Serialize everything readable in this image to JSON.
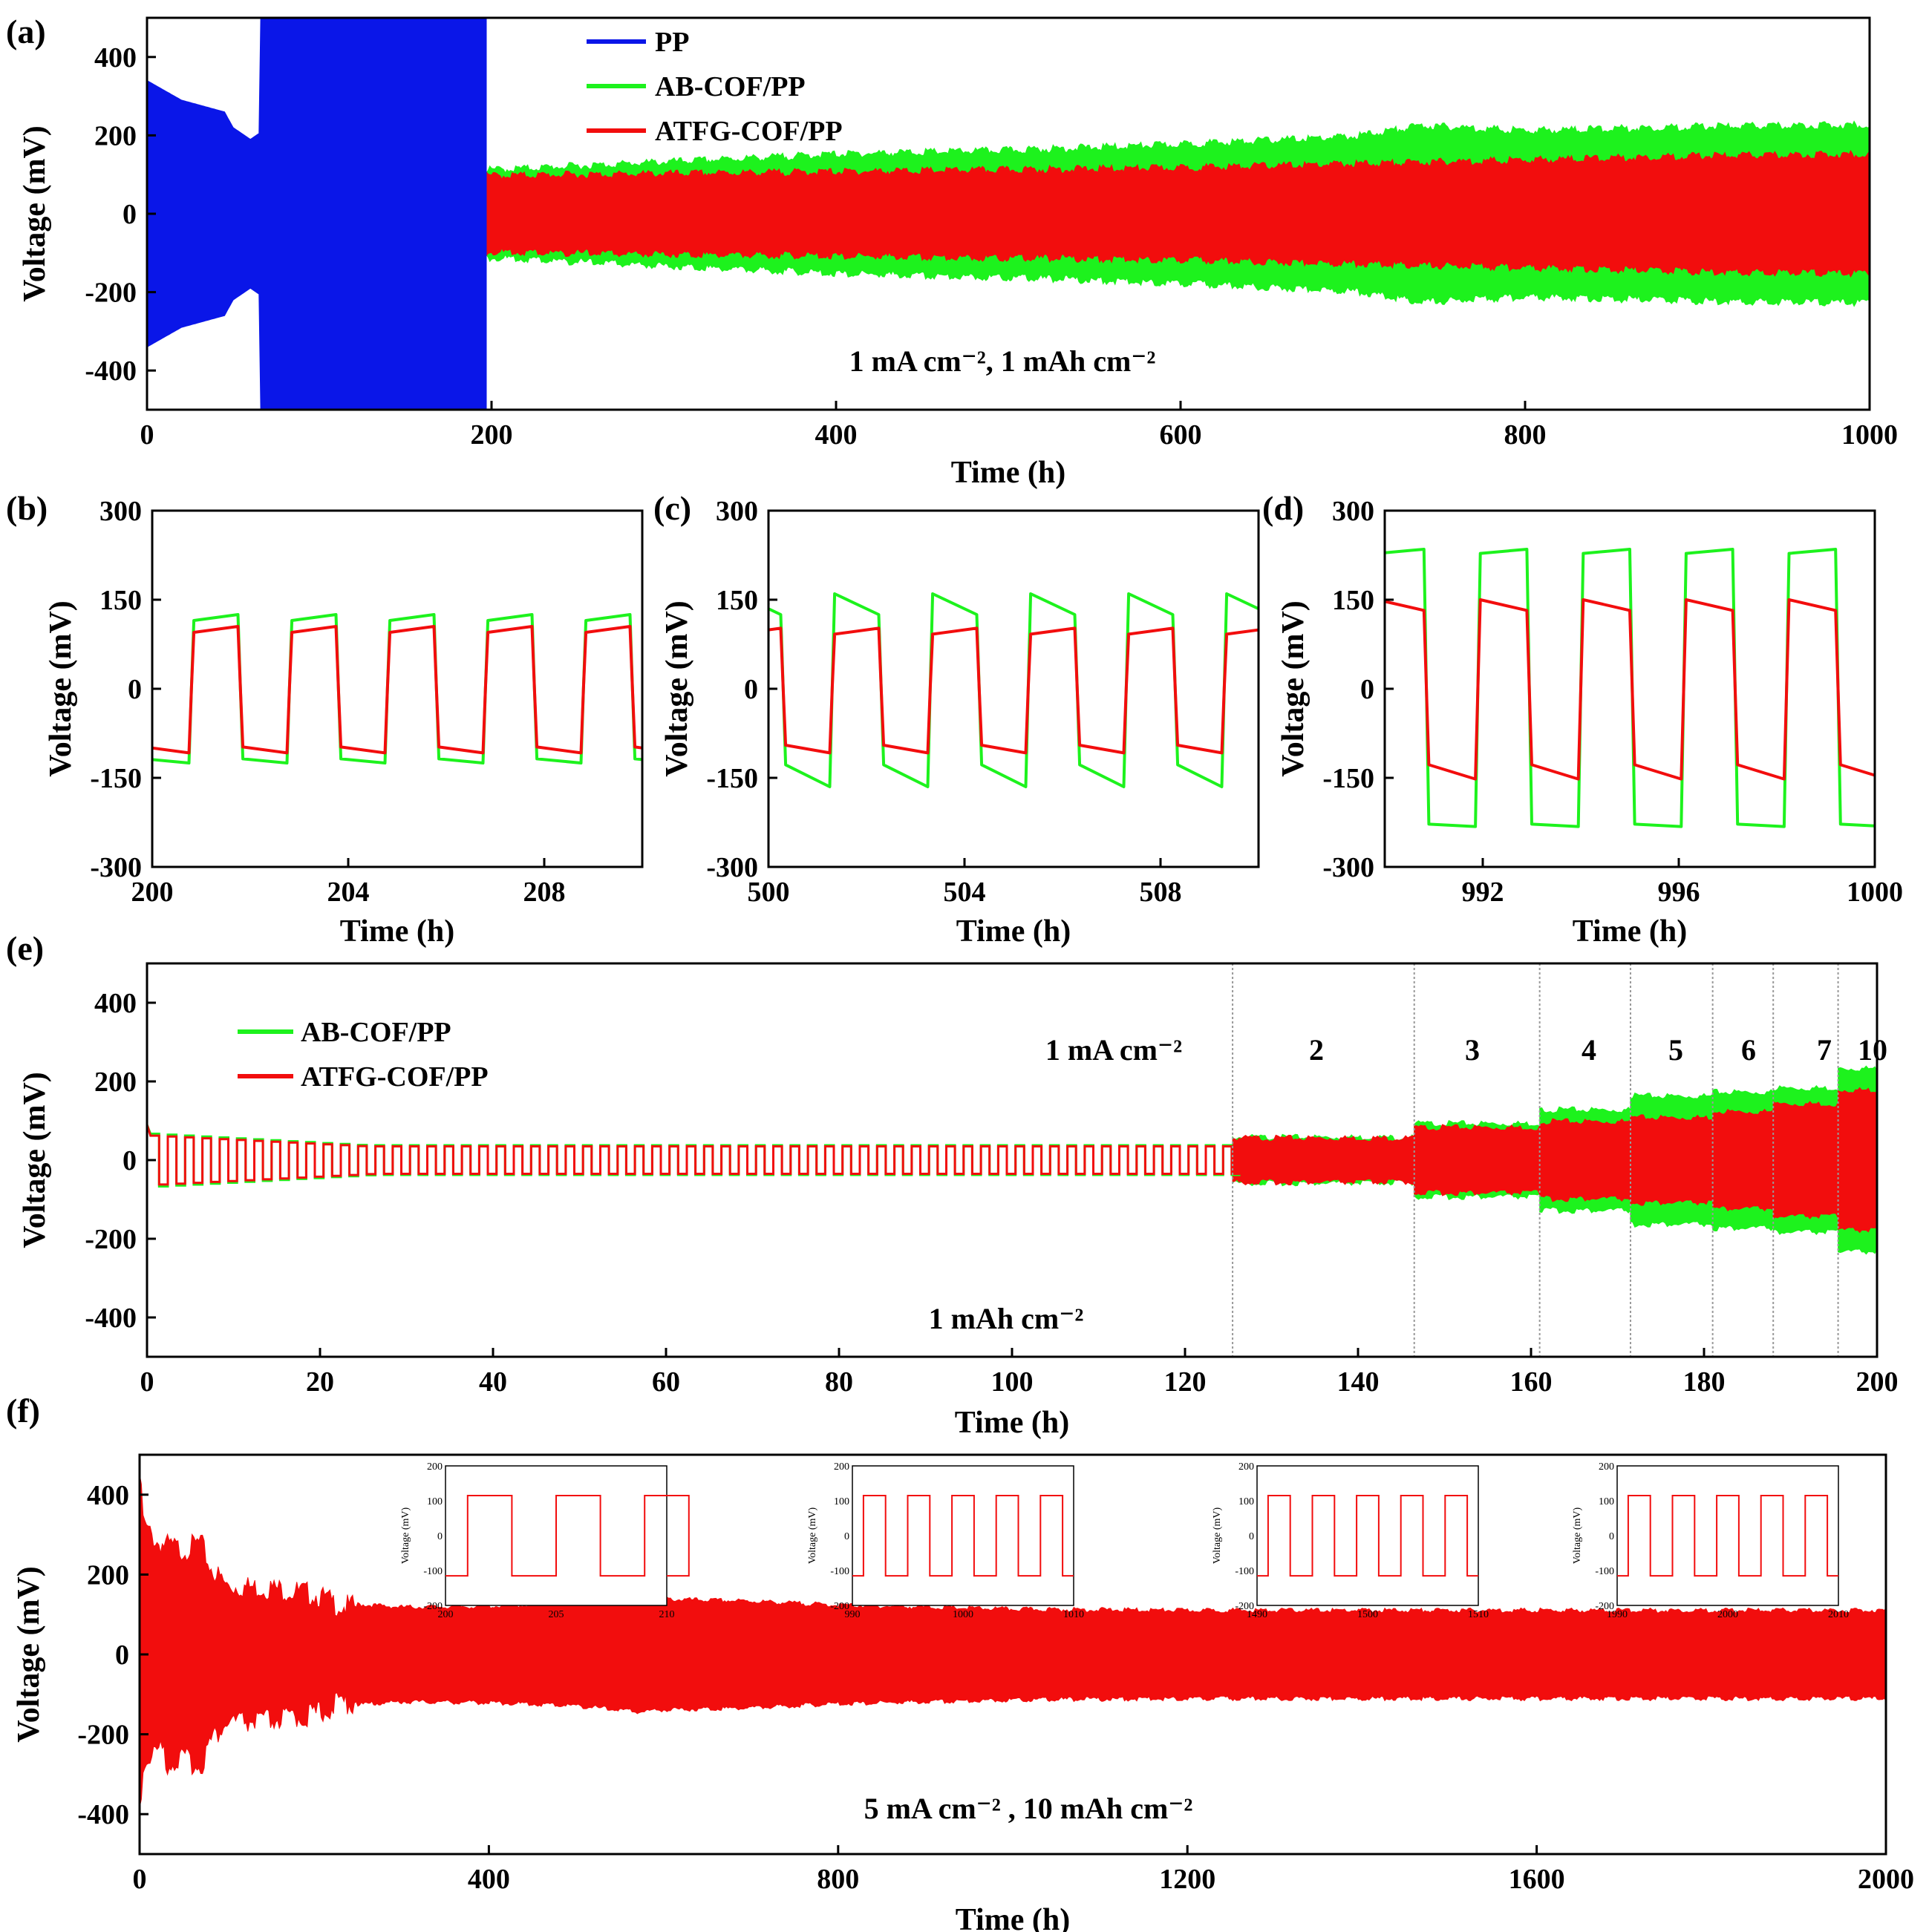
{
  "chart_data": [
    {
      "panel": "(a)",
      "type": "line",
      "xlabel": "Time (h)",
      "ylabel": "Voltage (mV)",
      "xlim": [
        0,
        1000
      ],
      "ylim": [
        -500,
        500
      ],
      "xticks": [
        0,
        200,
        400,
        600,
        800,
        1000
      ],
      "yticks": [
        -400,
        -200,
        0,
        200,
        400
      ],
      "annotation": "1 mA cm⁻², 1 mAh cm⁻²",
      "legend": [
        "PP",
        "AB-COF/PP",
        "ATFG-COF/PP"
      ],
      "series": [
        {
          "name": "PP",
          "color": "#0a16e8",
          "envelope": [
            [
              0,
              340
            ],
            [
              20,
              290
            ],
            [
              45,
              260
            ],
            [
              50,
              220
            ],
            [
              60,
              190
            ],
            [
              65,
              205
            ],
            [
              66,
              500
            ],
            [
              197,
              500
            ],
            [
              198,
              0
            ]
          ]
        },
        {
          "name": "AB-COF/PP",
          "color": "#1df21d",
          "envelope": [
            [
              0,
              240
            ],
            [
              5,
              185
            ],
            [
              20,
              140
            ],
            [
              50,
              125
            ],
            [
              100,
              118
            ],
            [
              200,
              115
            ],
            [
              300,
              135
            ],
            [
              400,
              155
            ],
            [
              500,
              165
            ],
            [
              600,
              180
            ],
            [
              700,
              200
            ],
            [
              740,
              228
            ],
            [
              800,
              215
            ],
            [
              900,
              225
            ],
            [
              1000,
              230
            ]
          ]
        },
        {
          "name": "ATFG-COF/PP",
          "color": "#f20d0d",
          "envelope": [
            [
              0,
              150
            ],
            [
              20,
              120
            ],
            [
              100,
              110
            ],
            [
              200,
              100
            ],
            [
              300,
              105
            ],
            [
              400,
              110
            ],
            [
              500,
              115
            ],
            [
              600,
              120
            ],
            [
              700,
              130
            ],
            [
              800,
              140
            ],
            [
              900,
              150
            ],
            [
              1000,
              155
            ]
          ]
        }
      ]
    },
    {
      "panel": "(b)",
      "type": "line",
      "xlabel": "Time (h)",
      "ylabel": "Voltage (mV)",
      "xlim": [
        200,
        210
      ],
      "ylim": [
        -300,
        300
      ],
      "xticks": [
        200,
        204,
        208
      ],
      "yticks": [
        -300,
        -150,
        0,
        150,
        300
      ],
      "cycle": {
        "start": 200.8,
        "period": 2,
        "half": 1
      },
      "series": [
        {
          "name": "AB-COF/PP",
          "color": "#1df21d",
          "plateau_pos": [
            115,
            125
          ],
          "plateau_neg": [
            -118,
            -125
          ]
        },
        {
          "name": "ATFG-COF/PP",
          "color": "#f20d0d",
          "plateau_pos": [
            95,
            105
          ],
          "plateau_neg": [
            -98,
            -108
          ]
        }
      ]
    },
    {
      "panel": "(c)",
      "type": "line",
      "xlabel": "Time (h)",
      "ylabel": "Voltage (mV)",
      "xlim": [
        500,
        510
      ],
      "ylim": [
        -300,
        300
      ],
      "xticks": [
        500,
        504,
        508
      ],
      "yticks": [
        -300,
        -150,
        0,
        150,
        300
      ],
      "cycle": {
        "start": 501.3,
        "period": 2,
        "half": 1
      },
      "series": [
        {
          "name": "AB-COF/PP",
          "color": "#1df21d",
          "plateau_pos": [
            160,
            125
          ],
          "plateau_neg": [
            -128,
            -165
          ]
        },
        {
          "name": "ATFG-COF/PP",
          "color": "#f20d0d",
          "plateau_pos": [
            92,
            102
          ],
          "plateau_neg": [
            -95,
            -108
          ]
        }
      ]
    },
    {
      "panel": "(d)",
      "type": "line",
      "xlabel": "Time (h)",
      "ylabel": "Voltage (mV)",
      "xlim": [
        990,
        1000
      ],
      "ylim": [
        -300,
        300
      ],
      "xticks": [
        992,
        996,
        1000
      ],
      "yticks": [
        -300,
        -150,
        0,
        150,
        300
      ],
      "cycle": {
        "start": 989.8,
        "period": 2.1,
        "half": 1.05
      },
      "series": [
        {
          "name": "AB-COF/PP",
          "color": "#1df21d",
          "plateau_pos": [
            228,
            235
          ],
          "plateau_neg": [
            -228,
            -232
          ]
        },
        {
          "name": "ATFG-COF/PP",
          "color": "#f20d0d",
          "plateau_pos": [
            150,
            132
          ],
          "plateau_neg": [
            -128,
            -152
          ]
        }
      ]
    },
    {
      "panel": "(e)",
      "type": "line",
      "xlabel": "Time (h)",
      "ylabel": "Voltage (mV)",
      "xlim": [
        0,
        200
      ],
      "ylim": [
        -500,
        500
      ],
      "xticks": [
        0,
        20,
        40,
        60,
        80,
        100,
        120,
        140,
        160,
        180,
        200
      ],
      "yticks": [
        -400,
        -200,
        0,
        200,
        400
      ],
      "annotation": "1 mAh cm⁻²",
      "legend": [
        "AB-COF/PP",
        "ATFG-COF/PP"
      ],
      "segments": [
        {
          "label": "1 mA cm⁻²",
          "start": 0,
          "end": 125.5,
          "green": 35,
          "red": 35
        },
        {
          "label": "2",
          "start": 125.5,
          "end": 146.5,
          "green": 60,
          "red": 58
        },
        {
          "label": "3",
          "start": 146.5,
          "end": 161,
          "green": 95,
          "red": 85
        },
        {
          "label": "4",
          "start": 161,
          "end": 171.5,
          "green": 130,
          "red": 100
        },
        {
          "label": "5",
          "start": 171.5,
          "end": 181,
          "green": 165,
          "red": 110
        },
        {
          "label": "6",
          "start": 181,
          "end": 188,
          "green": 175,
          "red": 125
        },
        {
          "label": "7",
          "start": 188,
          "end": 195.5,
          "green": 185,
          "red": 145
        },
        {
          "label": "10",
          "start": 195.5,
          "end": 200,
          "green": 235,
          "red": 180
        }
      ]
    },
    {
      "panel": "(f)",
      "type": "line",
      "xlabel": "Time (h)",
      "ylabel": "Voltage (mV)",
      "xlim": [
        0,
        2000
      ],
      "ylim": [
        -500,
        500
      ],
      "xticks": [
        0,
        400,
        800,
        1200,
        1600,
        2000
      ],
      "yticks": [
        -400,
        -200,
        0,
        200,
        400
      ],
      "annotation": "5 mA cm⁻² ,  10 mAh cm⁻²",
      "series": [
        {
          "name": "ATFG-COF/PP",
          "color": "#f20d0d",
          "envelope": [
            [
              0,
              460
            ],
            [
              5,
              330
            ],
            [
              20,
              290
            ],
            [
              50,
              270
            ],
            [
              70,
              290
            ],
            [
              80,
              230
            ],
            [
              100,
              180
            ],
            [
              150,
              175
            ],
            [
              200,
              160
            ],
            [
              230,
              130
            ],
            [
              300,
              120
            ],
            [
              400,
              122
            ],
            [
              500,
              130
            ],
            [
              570,
              145
            ],
            [
              600,
              140
            ],
            [
              700,
              135
            ],
            [
              800,
              125
            ],
            [
              900,
              120
            ],
            [
              1000,
              115
            ],
            [
              1200,
              112
            ],
            [
              1600,
              112
            ],
            [
              2000,
              112
            ]
          ]
        }
      ],
      "insets": [
        {
          "xticks": [
            200,
            205,
            210
          ],
          "yticks": [
            -200,
            -100,
            0,
            100,
            200
          ]
        },
        {
          "xticks": [
            990,
            1000,
            1010
          ],
          "yticks": [
            -200,
            -100,
            0,
            100,
            200
          ]
        },
        {
          "xticks": [
            1490,
            1500,
            1510
          ],
          "yticks": [
            -200,
            -100,
            0,
            100,
            200
          ]
        },
        {
          "xticks": [
            1990,
            2000,
            2010
          ],
          "yticks": [
            -200,
            -100,
            0,
            100,
            200
          ]
        }
      ]
    }
  ]
}
